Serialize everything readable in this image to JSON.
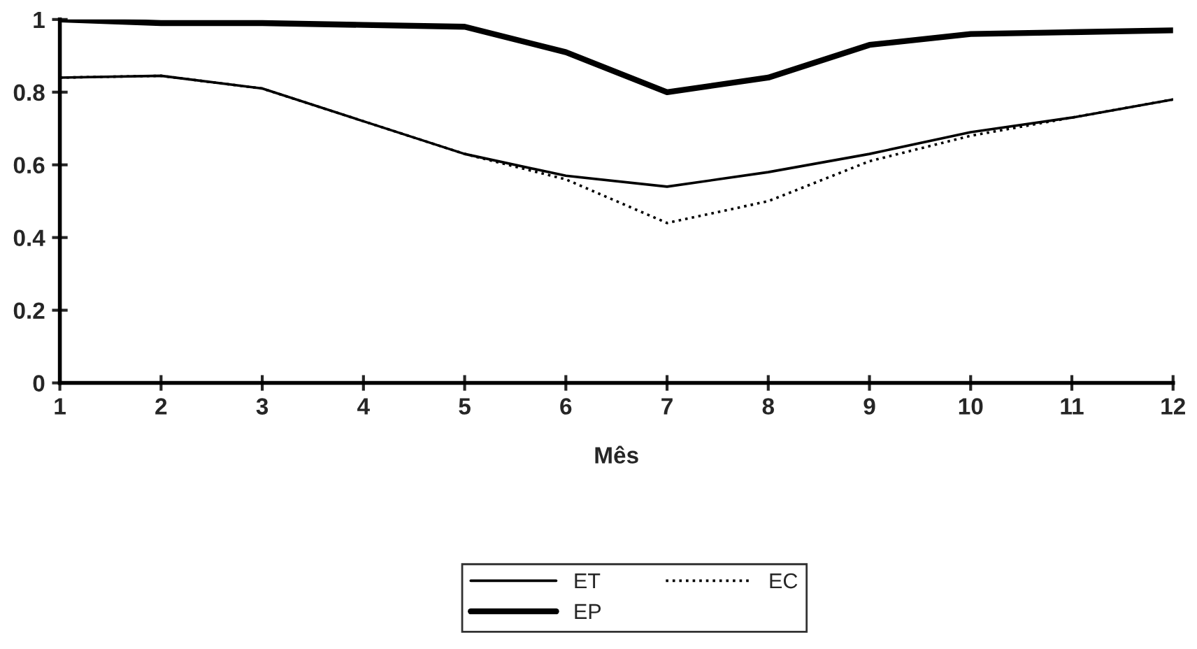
{
  "chart_data": {
    "type": "line",
    "xlabel": "Mês",
    "x": [
      1,
      2,
      3,
      4,
      5,
      6,
      7,
      8,
      9,
      10,
      11,
      12
    ],
    "series": [
      {
        "name": "ET",
        "color": "#000000",
        "line_style": "solid",
        "values": [
          0.84,
          0.845,
          0.81,
          0.72,
          0.63,
          0.57,
          0.54,
          0.58,
          0.63,
          0.69,
          0.73,
          0.78
        ]
      },
      {
        "name": "EP",
        "color": "#000000",
        "line_style": "solid",
        "values": [
          1.0,
          0.99,
          0.99,
          0.985,
          0.98,
          0.91,
          0.8,
          0.84,
          0.93,
          0.96,
          0.965,
          0.97
        ]
      },
      {
        "name": "EC",
        "color": "#000000",
        "line_style": "dotted",
        "values": [
          0.84,
          0.845,
          0.81,
          0.72,
          0.63,
          0.56,
          0.44,
          0.5,
          0.61,
          0.68,
          0.73,
          0.78
        ]
      }
    ],
    "xlim": [
      1,
      12
    ],
    "xticks": [
      1,
      2,
      3,
      4,
      5,
      6,
      7,
      8,
      9,
      10,
      11,
      12
    ],
    "ylim": [
      0,
      1
    ],
    "yticks": [
      0,
      0.2,
      0.4,
      0.6,
      0.8,
      1
    ],
    "grid": false,
    "legend": "bottom",
    "marker": "none"
  }
}
